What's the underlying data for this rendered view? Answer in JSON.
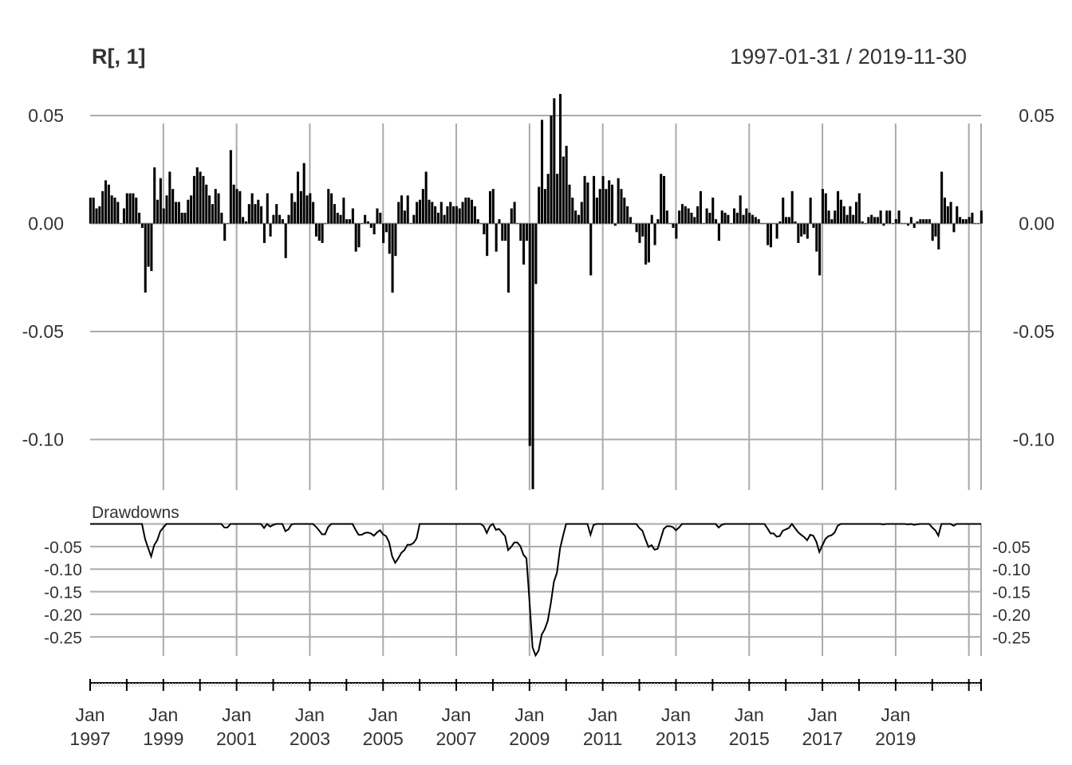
{
  "chart_data": [
    {
      "type": "bar",
      "title": "R[, 1]",
      "date_range": "1997-01-31 / 2019-11-30",
      "ylim": [
        -0.123,
        0.061
      ],
      "y_ticks": [
        "0.05",
        "0.00",
        "-0.05",
        "-0.10"
      ],
      "y_tick_values": [
        0.05,
        0.0,
        -0.05,
        -0.1
      ],
      "start": "1997-01",
      "frequency": "monthly",
      "values": [
        0.012,
        0.012,
        0.007,
        0.008,
        0.015,
        0.02,
        0.018,
        0.013,
        0.012,
        0.01,
        0.0,
        0.007,
        0.014,
        0.014,
        0.014,
        0.012,
        0.005,
        -0.002,
        -0.032,
        -0.02,
        -0.022,
        0.026,
        0.011,
        0.021,
        0.007,
        0.013,
        0.024,
        0.016,
        0.01,
        0.01,
        0.005,
        0.005,
        0.011,
        0.013,
        0.022,
        0.026,
        0.024,
        0.022,
        0.018,
        0.013,
        0.009,
        0.016,
        0.014,
        0.005,
        -0.008,
        0.0,
        0.034,
        0.018,
        0.016,
        0.015,
        0.003,
        0.001,
        0.009,
        0.014,
        0.009,
        0.011,
        0.008,
        -0.009,
        0.014,
        -0.006,
        0.004,
        0.009,
        0.004,
        0.002,
        -0.016,
        0.004,
        0.014,
        0.01,
        0.024,
        0.015,
        0.028,
        0.013,
        0.014,
        0.01,
        -0.006,
        -0.008,
        -0.009,
        0.0,
        0.016,
        0.014,
        0.009,
        0.005,
        0.004,
        0.012,
        0.002,
        0.002,
        0.007,
        -0.013,
        -0.011,
        0.0,
        0.004,
        0.001,
        -0.002,
        -0.005,
        0.007,
        0.005,
        -0.009,
        -0.004,
        -0.014,
        -0.032,
        -0.015,
        0.01,
        0.013,
        0.006,
        0.013,
        0.0,
        0.004,
        0.01,
        0.011,
        0.016,
        0.024,
        0.011,
        0.01,
        0.008,
        0.005,
        0.01,
        0.004,
        0.008,
        0.01,
        0.008,
        0.008,
        0.007,
        0.01,
        0.012,
        0.012,
        0.011,
        0.008,
        0.002,
        0.0,
        -0.005,
        -0.015,
        0.015,
        0.016,
        -0.013,
        0.002,
        -0.008,
        -0.008,
        -0.032,
        0.007,
        0.01,
        0.0,
        -0.008,
        -0.019,
        -0.008,
        -0.103,
        -0.123,
        -0.028,
        0.017,
        0.048,
        0.016,
        0.023,
        0.05,
        0.058,
        0.023,
        0.06,
        0.031,
        0.036,
        0.018,
        0.012,
        0.006,
        0.004,
        0.01,
        0.022,
        0.019,
        -0.024,
        0.022,
        0.012,
        0.016,
        0.022,
        0.016,
        0.02,
        0.018,
        -0.001,
        0.021,
        0.016,
        0.012,
        0.008,
        0.003,
        0.0,
        -0.004,
        -0.009,
        -0.006,
        -0.019,
        -0.018,
        0.004,
        -0.01,
        0.002,
        0.023,
        0.022,
        0.006,
        0.0,
        -0.002,
        -0.007,
        0.006,
        0.009,
        0.008,
        0.007,
        0.005,
        0.003,
        0.008,
        0.015,
        0.0,
        0.007,
        0.005,
        0.012,
        0.002,
        -0.008,
        0.006,
        0.005,
        0.004,
        0.0,
        0.007,
        0.005,
        0.013,
        0.004,
        0.007,
        0.005,
        0.004,
        0.003,
        0.002,
        0.0,
        0.0,
        -0.01,
        -0.011,
        0.0,
        -0.007,
        0.001,
        0.012,
        0.003,
        0.003,
        0.015,
        0.001,
        -0.009,
        -0.006,
        -0.005,
        -0.007,
        0.012,
        -0.002,
        -0.013,
        -0.024,
        0.016,
        0.014,
        0.006,
        0.002,
        0.006,
        0.015,
        0.011,
        0.008,
        0.004,
        0.008,
        0.004,
        0.01,
        0.014,
        0.001,
        0.0,
        0.003,
        0.004,
        0.003,
        0.003,
        0.006,
        -0.001,
        0.006,
        0.006,
        0.0,
        0.002,
        0.006,
        0.0,
        0.0,
        -0.001,
        0.003,
        -0.002,
        0.001,
        0.002,
        0.002,
        0.002,
        0.002,
        -0.008,
        -0.006,
        -0.012,
        0.024,
        0.012,
        0.008,
        0.01,
        -0.004,
        0.008,
        0.003,
        0.002,
        0.002,
        0.003,
        0.005,
        0.0,
        0.0,
        0.006
      ]
    },
    {
      "type": "line",
      "title": "Drawdowns",
      "ylim": [
        -0.29,
        0.0
      ],
      "y_ticks": [
        "-0.05",
        "-0.10",
        "-0.15",
        "-0.20",
        "-0.25"
      ],
      "y_tick_values": [
        -0.05,
        -0.1,
        -0.15,
        -0.2,
        -0.25
      ],
      "start": "1997-01",
      "frequency": "monthly",
      "values": [
        0,
        0,
        0,
        0,
        0,
        0,
        0,
        0,
        0,
        0,
        0,
        0,
        0,
        0,
        0,
        0,
        0,
        0,
        -0.033,
        -0.053,
        -0.072,
        -0.047,
        -0.036,
        -0.016,
        -0.008,
        0,
        0,
        0,
        0,
        0,
        0,
        0,
        0,
        0,
        0,
        0,
        0,
        0,
        0,
        0,
        0,
        0,
        0,
        0,
        -0.008,
        -0.008,
        0,
        0,
        0,
        0,
        0,
        0,
        0,
        0,
        0,
        0,
        0,
        -0.009,
        0,
        -0.006,
        -0.002,
        0,
        0,
        0,
        -0.016,
        -0.012,
        -0.001,
        0,
        0,
        0,
        0,
        0,
        0,
        0,
        -0.006,
        -0.014,
        -0.023,
        -0.023,
        -0.007,
        0,
        0,
        0,
        0,
        0,
        0,
        0,
        0,
        -0.013,
        -0.024,
        -0.024,
        -0.02,
        -0.019,
        -0.021,
        -0.026,
        -0.019,
        -0.014,
        -0.023,
        -0.027,
        -0.041,
        -0.072,
        -0.086,
        -0.076,
        -0.064,
        -0.058,
        -0.046,
        -0.046,
        -0.042,
        -0.032,
        0,
        0,
        0,
        0,
        0,
        0,
        0,
        0,
        0,
        0,
        0,
        0,
        0,
        0,
        0,
        0,
        0,
        0,
        0,
        0,
        0,
        -0.005,
        -0.02,
        -0.005,
        0,
        -0.013,
        -0.011,
        -0.019,
        -0.027,
        -0.058,
        -0.051,
        -0.041,
        -0.041,
        -0.049,
        -0.068,
        -0.076,
        -0.171,
        -0.273,
        -0.291,
        -0.28,
        -0.245,
        -0.233,
        -0.214,
        -0.175,
        -0.128,
        -0.108,
        -0.055,
        -0.026,
        0,
        0,
        0,
        0,
        0,
        0,
        0,
        0,
        -0.024,
        -0.002,
        0,
        0,
        0,
        0,
        0,
        0,
        0,
        0,
        0,
        0,
        0,
        0,
        0,
        0,
        -0.009,
        -0.015,
        -0.034,
        -0.051,
        -0.047,
        -0.057,
        -0.055,
        -0.033,
        -0.011,
        -0.005,
        -0.005,
        -0.007,
        -0.014,
        -0.008,
        0,
        0,
        0,
        0,
        0,
        0,
        0,
        0,
        0,
        0,
        0,
        0,
        -0.008,
        -0.002,
        0,
        0,
        0,
        0,
        0,
        0,
        0,
        0,
        0,
        0,
        0,
        0,
        0,
        0,
        -0.01,
        -0.021,
        -0.021,
        -0.028,
        -0.027,
        -0.015,
        -0.012,
        -0.009,
        0,
        -0.009,
        -0.018,
        -0.024,
        -0.029,
        -0.036,
        -0.024,
        -0.026,
        -0.039,
        -0.062,
        -0.047,
        -0.033,
        -0.027,
        -0.025,
        -0.019,
        -0.004,
        0,
        0,
        0,
        0,
        0,
        0,
        0,
        0,
        0,
        0,
        0,
        0,
        0,
        0,
        -0.001,
        0,
        0,
        0,
        0,
        0,
        0,
        0,
        -0.001,
        0,
        -0.002,
        -0.001,
        0,
        0,
        0,
        0,
        -0.008,
        -0.014,
        -0.026,
        0,
        0,
        0,
        0,
        -0.004,
        0,
        0,
        0,
        0,
        0,
        0,
        0,
        0,
        0
      ]
    }
  ],
  "x_axis": {
    "tick_months": [
      "Jan",
      "Jan",
      "Jan",
      "Jan",
      "Jan",
      "Jan",
      "Jan",
      "Jan",
      "Jan",
      "Jan",
      "Jan",
      "Jan"
    ],
    "tick_years": [
      "1997",
      "1999",
      "2001",
      "2003",
      "2005",
      "2007",
      "2009",
      "2011",
      "2013",
      "2015",
      "2017",
      "2019"
    ]
  }
}
